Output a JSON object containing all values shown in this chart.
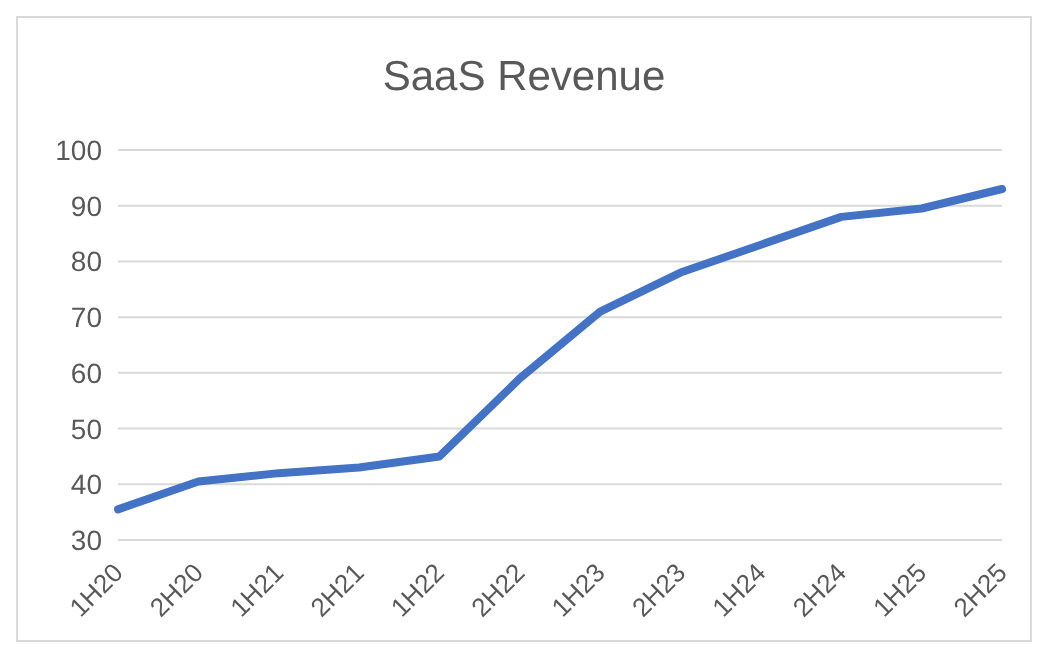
{
  "chart_data": {
    "type": "line",
    "title": "SaaS Revenue",
    "categories": [
      "1H20",
      "2H20",
      "1H21",
      "2H21",
      "1H22",
      "2H22",
      "1H23",
      "2H23",
      "1H24",
      "2H24",
      "1H25",
      "2H25"
    ],
    "values": [
      35.5,
      40.5,
      42,
      43,
      45,
      59,
      71,
      78,
      83,
      88,
      89.5,
      93
    ],
    "color": "#4472c4",
    "ylim": [
      30,
      100
    ],
    "yticks": [
      30,
      40,
      50,
      60,
      70,
      80,
      90,
      100
    ],
    "grid": "y",
    "marker": "none",
    "line_style": "solid"
  }
}
